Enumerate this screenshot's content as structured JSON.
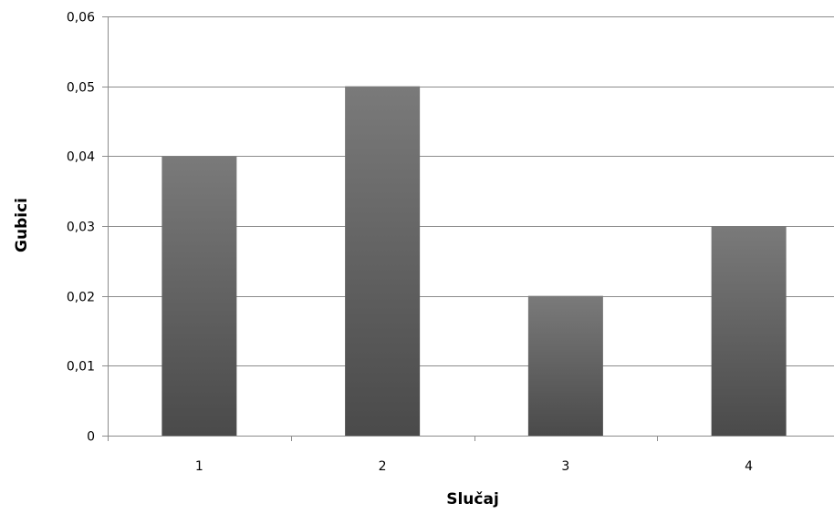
{
  "chart_data": {
    "type": "bar",
    "categories": [
      "1",
      "2",
      "3",
      "4"
    ],
    "values": [
      0.04,
      0.05,
      0.02,
      0.03
    ],
    "xlabel": "Slučaj",
    "ylabel": "Gubici",
    "ylim": [
      0,
      0.06
    ],
    "yticks": [
      "0",
      "0,01",
      "0,02",
      "0,03",
      "0,04",
      "0,05",
      "0,06"
    ],
    "grid": true,
    "legend": "none",
    "colors": {
      "bar_light": "#7a7a7a",
      "bar_dark": "#4a4a4a"
    }
  }
}
